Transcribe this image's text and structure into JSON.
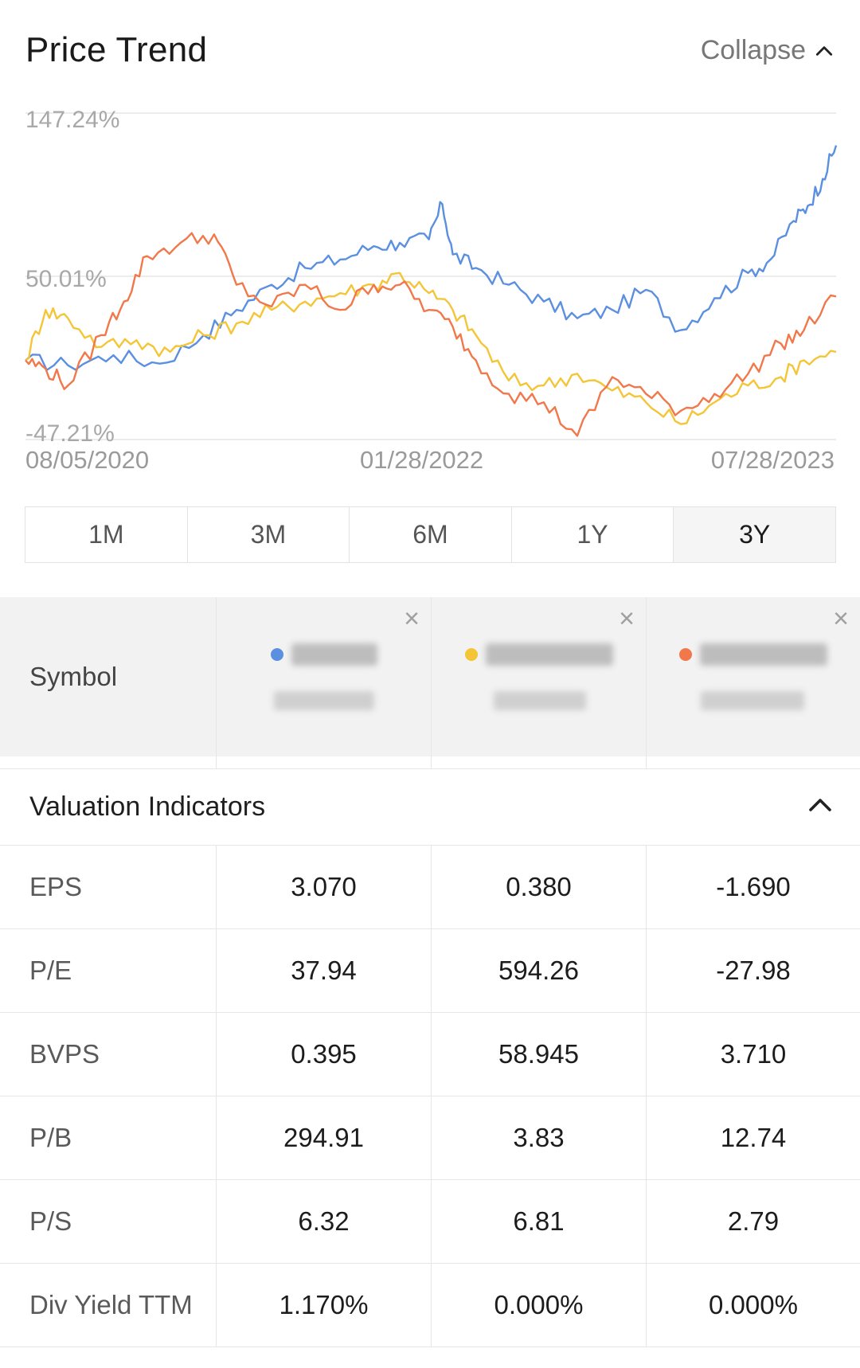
{
  "header": {
    "title": "Price Trend",
    "collapse_label": "Collapse"
  },
  "chart_data": {
    "type": "line",
    "y_axis_labels": [
      "147.24%",
      "50.01%",
      "-47.21%"
    ],
    "ylim": [
      -47.21,
      147.24
    ],
    "x_axis_labels": [
      "08/05/2020",
      "01/28/2022",
      "07/28/2023"
    ],
    "x_range": [
      "08/05/2020",
      "07/28/2023"
    ],
    "grid": true,
    "series": [
      {
        "color": "#5B8FE0",
        "x": [
          "08/05/2020",
          "10/01/2020",
          "12/01/2020",
          "02/01/2021",
          "04/01/2021",
          "05/15/2021",
          "07/01/2021",
          "08/15/2021",
          "10/01/2021",
          "11/15/2021",
          "12/20/2021",
          "01/28/2022",
          "02/15/2022",
          "03/01/2022",
          "04/01/2022",
          "05/15/2022",
          "07/01/2022",
          "08/15/2022",
          "10/01/2022",
          "11/15/2022",
          "01/01/2023",
          "02/15/2023",
          "04/01/2023",
          "05/01/2023",
          "06/01/2023",
          "06/20/2023",
          "07/10/2023",
          "07/28/2023"
        ],
        "y": [
          0,
          -3,
          3,
          -2,
          15,
          30,
          45,
          55,
          60,
          68,
          70,
          72,
          93,
          63,
          55,
          45,
          35,
          25,
          30,
          42,
          18,
          37,
          52,
          60,
          83,
          92,
          108,
          128
        ]
      },
      {
        "color": "#F4C536",
        "x": [
          "08/05/2020",
          "09/01/2020",
          "10/01/2020",
          "11/15/2020",
          "01/01/2021",
          "02/15/2021",
          "04/01/2021",
          "05/15/2021",
          "07/01/2021",
          "08/15/2021",
          "10/01/2021",
          "11/15/2021",
          "12/20/2021",
          "01/28/2022",
          "03/01/2022",
          "04/01/2022",
          "05/15/2022",
          "07/01/2022",
          "08/15/2022",
          "10/01/2022",
          "11/15/2022",
          "01/01/2023",
          "02/15/2023",
          "04/01/2023",
          "05/15/2023",
          "06/15/2023",
          "07/28/2023"
        ],
        "y": [
          0,
          30,
          25,
          8,
          12,
          5,
          15,
          22,
          30,
          35,
          40,
          45,
          52,
          40,
          30,
          15,
          -12,
          -15,
          -8,
          -18,
          -25,
          -38,
          -25,
          -15,
          -10,
          0,
          5
        ]
      },
      {
        "color": "#F0784A",
        "x": [
          "08/05/2020",
          "09/01/2020",
          "10/01/2020",
          "11/15/2020",
          "12/15/2020",
          "01/15/2021",
          "03/01/2021",
          "04/15/2021",
          "05/15/2021",
          "07/01/2021",
          "08/15/2021",
          "10/01/2021",
          "11/15/2021",
          "12/20/2021",
          "01/28/2022",
          "03/01/2022",
          "04/01/2022",
          "05/15/2022",
          "07/01/2022",
          "08/15/2022",
          "10/01/2022",
          "11/15/2022",
          "01/01/2023",
          "02/15/2023",
          "04/01/2023",
          "05/15/2023",
          "06/15/2023",
          "07/28/2023"
        ],
        "y": [
          0,
          -5,
          -15,
          15,
          35,
          62,
          70,
          75,
          45,
          32,
          45,
          30,
          45,
          45,
          30,
          20,
          0,
          -20,
          -25,
          -45,
          -10,
          -20,
          -30,
          -20,
          -8,
          10,
          18,
          38
        ]
      }
    ]
  },
  "ranges": [
    "1M",
    "3M",
    "6M",
    "1Y",
    "3Y"
  ],
  "active_range": "3Y",
  "compare": {
    "symbol_label": "Symbol",
    "columns": [
      {
        "dot_color": "#5B8FE0"
      },
      {
        "dot_color": "#F4C536"
      },
      {
        "dot_color": "#F0784A"
      }
    ],
    "close_glyph": "×"
  },
  "valuation": {
    "title": "Valuation Indicators",
    "rows": [
      {
        "label": "EPS",
        "values": [
          "3.070",
          "0.380",
          "-1.690"
        ]
      },
      {
        "label": "P/E",
        "values": [
          "37.94",
          "594.26",
          "-27.98"
        ]
      },
      {
        "label": "BVPS",
        "values": [
          "0.395",
          "58.945",
          "3.710"
        ]
      },
      {
        "label": "P/B",
        "values": [
          "294.91",
          "3.83",
          "12.74"
        ]
      },
      {
        "label": "P/S",
        "values": [
          "6.32",
          "6.81",
          "2.79"
        ]
      },
      {
        "label": "Div Yield TTM",
        "values": [
          "1.170%",
          "0.000%",
          "0.000%"
        ]
      }
    ]
  }
}
